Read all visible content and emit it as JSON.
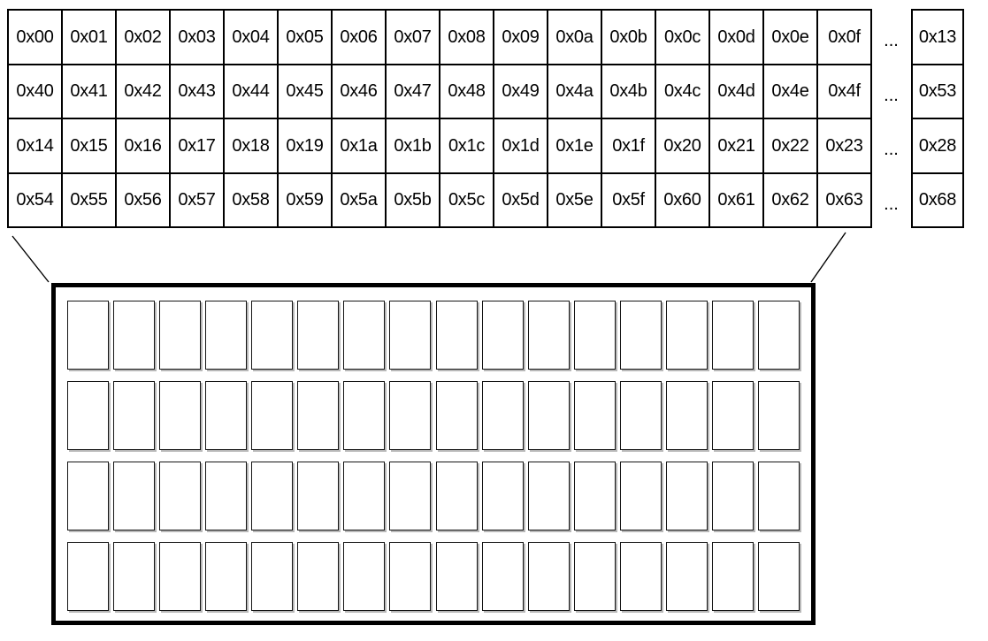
{
  "address_table": {
    "rows": [
      [
        "0x00",
        "0x01",
        "0x02",
        "0x03",
        "0x04",
        "0x05",
        "0x06",
        "0x07",
        "0x08",
        "0x09",
        "0x0a",
        "0x0b",
        "0x0c",
        "0x0d",
        "0x0e",
        "0x0f"
      ],
      [
        "0x40",
        "0x41",
        "0x42",
        "0x43",
        "0x44",
        "0x45",
        "0x46",
        "0x47",
        "0x48",
        "0x49",
        "0x4a",
        "0x4b",
        "0x4c",
        "0x4d",
        "0x4e",
        "0x4f"
      ],
      [
        "0x14",
        "0x15",
        "0x16",
        "0x17",
        "0x18",
        "0x19",
        "0x1a",
        "0x1b",
        "0x1c",
        "0x1d",
        "0x1e",
        "0x1f",
        "0x20",
        "0x21",
        "0x22",
        "0x23"
      ],
      [
        "0x54",
        "0x55",
        "0x56",
        "0x57",
        "0x58",
        "0x59",
        "0x5a",
        "0x5b",
        "0x5c",
        "0x5d",
        "0x5e",
        "0x5f",
        "0x60",
        "0x61",
        "0x62",
        "0x63"
      ]
    ],
    "ellipsis": "...",
    "tail_column": [
      "0x13",
      "0x53",
      "0x28",
      "0x68"
    ]
  },
  "block_grid": {
    "rows": 4,
    "columns": 16
  },
  "colors": {
    "line": "#000000",
    "background": "#ffffff",
    "cell_border": "#151515"
  }
}
